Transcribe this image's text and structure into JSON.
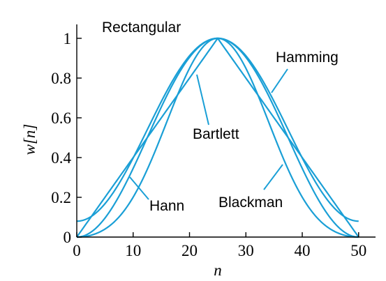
{
  "chart_data": {
    "type": "line",
    "xlabel": "n",
    "ylabel": "w[n]",
    "xlim": [
      0,
      53
    ],
    "ylim": [
      0,
      1.07
    ],
    "xticks": [
      0,
      10,
      20,
      30,
      40,
      50
    ],
    "yticks": [
      0,
      0.2,
      0.4,
      0.6,
      0.8,
      1
    ],
    "xtick_labels": [
      "0",
      "10",
      "20",
      "30",
      "40",
      "50"
    ],
    "ytick_labels": [
      "0",
      "0.2",
      "0.4",
      "0.6",
      "0.8",
      "1"
    ],
    "grid": false,
    "legend": "none (inline annotations)",
    "line_color": "#1a9fd6",
    "M": 50,
    "series": [
      {
        "name": "Rectangular",
        "x": [
          0,
          50
        ],
        "y": [
          1,
          1
        ]
      },
      {
        "name": "Bartlett",
        "x": [
          0,
          5,
          10,
          15,
          20,
          25,
          30,
          35,
          40,
          45,
          50
        ],
        "y": [
          0,
          0.2,
          0.4,
          0.6,
          0.8,
          1,
          0.8,
          0.6,
          0.4,
          0.2,
          0
        ]
      },
      {
        "name": "Hann",
        "x": [
          0,
          5,
          10,
          15,
          20,
          25,
          30,
          35,
          40,
          45,
          50
        ],
        "y": [
          0,
          0.095,
          0.345,
          0.655,
          0.905,
          1,
          0.905,
          0.655,
          0.345,
          0.095,
          0
        ]
      },
      {
        "name": "Hamming",
        "x": [
          0,
          5,
          10,
          15,
          20,
          25,
          30,
          35,
          40,
          45,
          50
        ],
        "y": [
          0.08,
          0.167,
          0.397,
          0.683,
          0.913,
          1,
          0.913,
          0.683,
          0.397,
          0.167,
          0.08
        ]
      },
      {
        "name": "Blackman",
        "x": [
          0,
          5,
          10,
          15,
          20,
          25,
          30,
          35,
          40,
          45,
          50
        ],
        "y": [
          0,
          0.04,
          0.201,
          0.509,
          0.849,
          1,
          0.849,
          0.509,
          0.201,
          0.04,
          0
        ]
      }
    ],
    "annotations": [
      {
        "label": "Rectangular"
      },
      {
        "label": "Hamming"
      },
      {
        "label": "Bartlett"
      },
      {
        "label": "Hann"
      },
      {
        "label": "Blackman"
      }
    ]
  }
}
